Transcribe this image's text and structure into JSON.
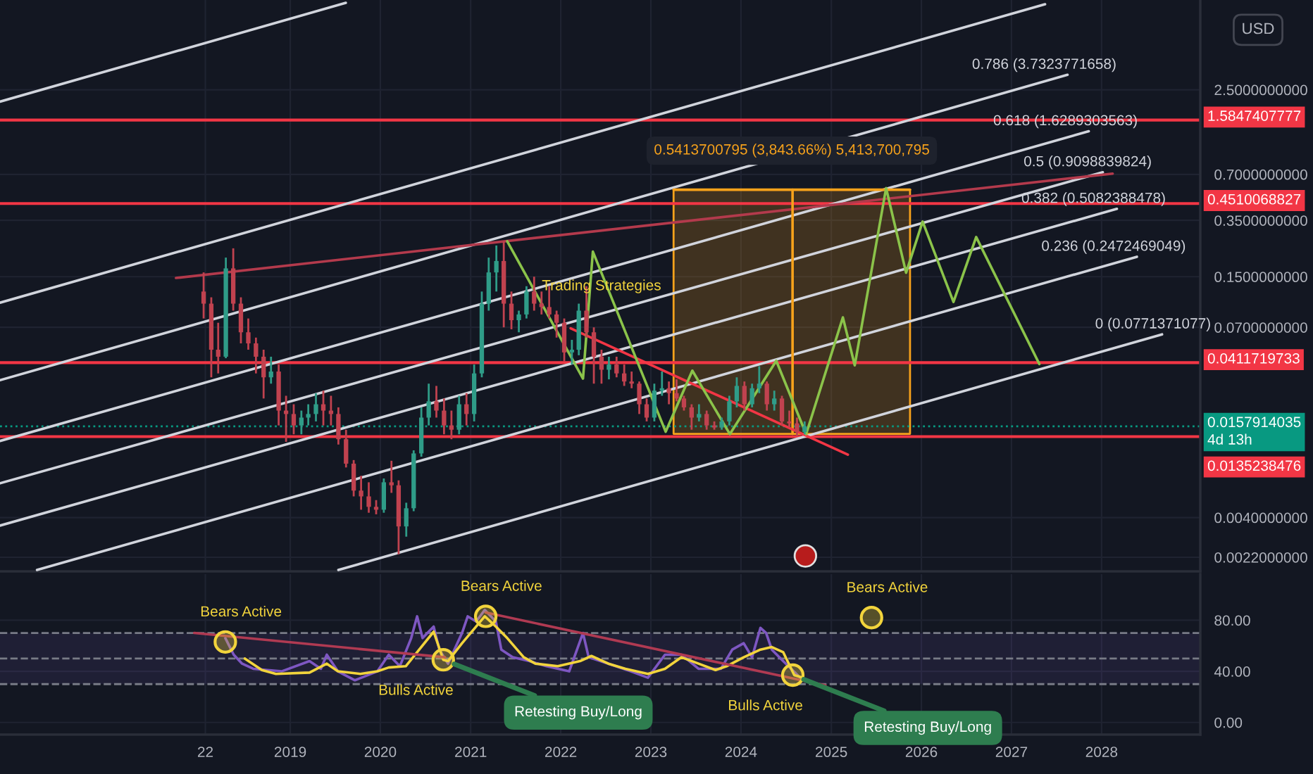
{
  "chart_data": [
    {
      "type": "candlestick",
      "ylabel": "USD",
      "log": true,
      "grid": true,
      "tick_labels": "y",
      "ylim": [
        0.00178,
        9.65
      ],
      "xlim": [
        "2015-10-13",
        "2029-02-04"
      ],
      "yticks": [
        {
          "value": 2.5,
          "label": "2.5000000000"
        },
        {
          "value": 0.7,
          "label": "0.7000000000"
        },
        {
          "value": 0.35,
          "label": "0.3500000000"
        },
        {
          "value": 0.15,
          "label": "0.1500000000"
        },
        {
          "value": 0.07,
          "label": "0.0700000000"
        },
        {
          "value": 0.004,
          "label": "0.0040000000"
        },
        {
          "value": 0.0022,
          "label": "0.0022000000"
        }
      ],
      "xticks": [
        {
          "value": "2018-01-22",
          "label": null
        },
        {
          "value": "2019",
          "label": null
        },
        {
          "value": "2020",
          "label": null
        },
        {
          "value": "2021",
          "label": null
        },
        {
          "value": "2022",
          "label": null
        },
        {
          "value": "2023",
          "label": null
        },
        {
          "value": "2024",
          "label": null
        },
        {
          "value": "2025",
          "label": null
        },
        {
          "value": "2026",
          "label": null
        },
        {
          "value": "2027",
          "label": null
        },
        {
          "value": "2028",
          "label": null
        }
      ],
      "x": [
        "2018-01-15",
        "2018-02-15",
        "2018-03-15",
        "2018-04-15",
        "2018-05-15",
        "2018-06-15",
        "2018-07-15",
        "2018-08-15",
        "2018-09-15",
        "2018-10-15",
        "2018-11-15",
        "2018-12-15",
        "2019-01-15",
        "2019-02-15",
        "2019-03-15",
        "2019-04-15",
        "2019-05-15",
        "2019-06-15",
        "2019-07-15",
        "2019-08-15",
        "2019-09-15",
        "2019-10-15",
        "2019-11-15",
        "2019-12-15",
        "2020-01-15",
        "2020-02-15",
        "2020-03-15",
        "2020-04-15",
        "2020-05-15",
        "2020-06-15",
        "2020-07-15",
        "2020-08-15",
        "2020-09-15",
        "2020-10-15",
        "2020-11-15",
        "2020-12-15",
        "2021-01-15",
        "2021-02-15",
        "2021-03-15",
        "2021-04-15",
        "2021-05-15",
        "2021-06-15",
        "2021-07-15",
        "2021-08-15",
        "2021-09-15",
        "2021-10-15",
        "2021-11-15",
        "2021-12-15",
        "2022-01-15",
        "2022-02-15",
        "2022-03-15",
        "2022-04-15",
        "2022-05-15",
        "2022-06-15",
        "2022-07-15",
        "2022-08-15",
        "2022-09-15",
        "2022-10-15",
        "2022-11-15",
        "2022-12-15",
        "2023-01-15",
        "2023-02-15",
        "2023-03-15",
        "2023-04-15",
        "2023-05-15",
        "2023-06-15",
        "2023-07-15",
        "2023-08-15",
        "2023-09-15",
        "2023-10-15",
        "2023-11-15",
        "2023-12-15",
        "2024-01-15",
        "2024-02-15",
        "2024-03-15",
        "2024-04-15",
        "2024-05-15",
        "2024-06-15",
        "2024-07-15",
        "2024-08-15",
        "2024-09-15"
      ],
      "ohlc": [
        [
          0.12,
          0.16,
          0.08,
          0.1
        ],
        [
          0.1,
          0.11,
          0.033,
          0.05
        ],
        [
          0.05,
          0.075,
          0.035,
          0.045
        ],
        [
          0.045,
          0.2,
          0.044,
          0.17
        ],
        [
          0.17,
          0.23,
          0.09,
          0.1
        ],
        [
          0.1,
          0.11,
          0.055,
          0.065
        ],
        [
          0.065,
          0.08,
          0.05,
          0.055
        ],
        [
          0.055,
          0.06,
          0.035,
          0.045
        ],
        [
          0.045,
          0.05,
          0.024,
          0.033
        ],
        [
          0.033,
          0.045,
          0.03,
          0.036
        ],
        [
          0.036,
          0.04,
          0.016,
          0.02
        ],
        [
          0.02,
          0.025,
          0.0125,
          0.019
        ],
        [
          0.019,
          0.022,
          0.014,
          0.016
        ],
        [
          0.016,
          0.02,
          0.014,
          0.018
        ],
        [
          0.018,
          0.022,
          0.016,
          0.019
        ],
        [
          0.019,
          0.026,
          0.017,
          0.022
        ],
        [
          0.022,
          0.027,
          0.016,
          0.02
        ],
        [
          0.02,
          0.025,
          0.016,
          0.019
        ],
        [
          0.019,
          0.021,
          0.012,
          0.013
        ],
        [
          0.013,
          0.015,
          0.0085,
          0.009
        ],
        [
          0.009,
          0.0095,
          0.0055,
          0.006
        ],
        [
          0.006,
          0.0075,
          0.0045,
          0.0055
        ],
        [
          0.0055,
          0.0068,
          0.0043,
          0.0047
        ],
        [
          0.0047,
          0.0052,
          0.0042,
          0.0045
        ],
        [
          0.0045,
          0.0072,
          0.0043,
          0.0068
        ],
        [
          0.0068,
          0.0094,
          0.0058,
          0.0065
        ],
        [
          0.0065,
          0.007,
          0.0023,
          0.0035
        ],
        [
          0.0035,
          0.005,
          0.003,
          0.0046
        ],
        [
          0.0046,
          0.011,
          0.0044,
          0.0105
        ],
        [
          0.0105,
          0.021,
          0.01,
          0.018
        ],
        [
          0.018,
          0.03,
          0.016,
          0.023
        ],
        [
          0.023,
          0.029,
          0.018,
          0.02
        ],
        [
          0.02,
          0.024,
          0.014,
          0.016
        ],
        [
          0.016,
          0.02,
          0.013,
          0.015
        ],
        [
          0.015,
          0.025,
          0.014,
          0.022
        ],
        [
          0.022,
          0.026,
          0.016,
          0.019
        ],
        [
          0.019,
          0.04,
          0.017,
          0.035
        ],
        [
          0.035,
          0.12,
          0.033,
          0.1
        ],
        [
          0.1,
          0.2,
          0.09,
          0.16
        ],
        [
          0.16,
          0.24,
          0.12,
          0.19
        ],
        [
          0.19,
          0.256,
          0.07,
          0.1
        ],
        [
          0.1,
          0.12,
          0.068,
          0.078
        ],
        [
          0.078,
          0.09,
          0.065,
          0.085
        ],
        [
          0.085,
          0.13,
          0.08,
          0.12
        ],
        [
          0.12,
          0.15,
          0.09,
          0.1
        ],
        [
          0.1,
          0.12,
          0.085,
          0.095
        ],
        [
          0.095,
          0.13,
          0.08,
          0.085
        ],
        [
          0.085,
          0.09,
          0.06,
          0.075
        ],
        [
          0.075,
          0.08,
          0.042,
          0.048
        ],
        [
          0.048,
          0.058,
          0.04,
          0.05
        ],
        [
          0.05,
          0.1,
          0.046,
          0.09
        ],
        [
          0.09,
          0.13,
          0.06,
          0.065
        ],
        [
          0.065,
          0.07,
          0.03,
          0.045
        ],
        [
          0.045,
          0.05,
          0.03,
          0.037
        ],
        [
          0.037,
          0.045,
          0.032,
          0.04
        ],
        [
          0.04,
          0.045,
          0.033,
          0.035
        ],
        [
          0.035,
          0.04,
          0.029,
          0.031
        ],
        [
          0.031,
          0.036,
          0.028,
          0.03
        ],
        [
          0.03,
          0.031,
          0.019,
          0.022
        ],
        [
          0.022,
          0.024,
          0.017,
          0.018
        ],
        [
          0.018,
          0.03,
          0.017,
          0.027
        ],
        [
          0.027,
          0.036,
          0.025,
          0.028
        ],
        [
          0.028,
          0.031,
          0.022,
          0.026
        ],
        [
          0.026,
          0.032,
          0.023,
          0.024
        ],
        [
          0.024,
          0.025,
          0.02,
          0.021
        ],
        [
          0.021,
          0.022,
          0.015,
          0.018
        ],
        [
          0.018,
          0.022,
          0.017,
          0.019
        ],
        [
          0.019,
          0.02,
          0.015,
          0.016
        ],
        [
          0.016,
          0.017,
          0.015,
          0.0155
        ],
        [
          0.0155,
          0.018,
          0.015,
          0.017
        ],
        [
          0.017,
          0.025,
          0.016,
          0.023
        ],
        [
          0.023,
          0.033,
          0.021,
          0.029
        ],
        [
          0.029,
          0.031,
          0.02,
          0.022
        ],
        [
          0.022,
          0.03,
          0.021,
          0.028
        ],
        [
          0.028,
          0.039,
          0.026,
          0.03
        ],
        [
          0.03,
          0.031,
          0.02,
          0.022
        ],
        [
          0.022,
          0.027,
          0.02,
          0.024
        ],
        [
          0.024,
          0.025,
          0.016,
          0.017
        ],
        [
          0.017,
          0.02,
          0.0155,
          0.0165
        ],
        [
          0.0165,
          0.018,
          0.0136,
          0.0145
        ],
        [
          0.0145,
          0.017,
          0.014,
          0.0158
        ]
      ],
      "colors": [
        "#c0424f",
        "#c0424f",
        "#c0424f",
        "#2f9c88",
        "#c0424f",
        "#c0424f",
        "#c0424f",
        "#c0424f",
        "#c0424f",
        "#2f9c88",
        "#c0424f",
        "#c0424f",
        "#c0424f",
        "#2f9c88",
        "#2f9c88",
        "#2f9c88",
        "#c0424f",
        "#c0424f",
        "#c0424f",
        "#c0424f",
        "#c0424f",
        "#c0424f",
        "#c0424f",
        "#c0424f",
        "#2f9c88",
        "#c0424f",
        "#c0424f",
        "#2f9c88",
        "#2f9c88",
        "#2f9c88",
        "#2f9c88",
        "#c0424f",
        "#c0424f",
        "#c0424f",
        "#2f9c88",
        "#c0424f",
        "#2f9c88",
        "#2f9c88",
        "#2f9c88",
        "#2f9c88",
        "#c0424f",
        "#c0424f",
        "#2f9c88",
        "#2f9c88",
        "#c0424f",
        "#c0424f",
        "#c0424f",
        "#c0424f",
        "#c0424f",
        "#2f9c88",
        "#2f9c88",
        "#c0424f",
        "#c0424f",
        "#c0424f",
        "#2f9c88",
        "#c0424f",
        "#c0424f",
        "#c0424f",
        "#c0424f",
        "#c0424f",
        "#2f9c88",
        "#2f9c88",
        "#c0424f",
        "#c0424f",
        "#c0424f",
        "#c0424f",
        "#2f9c88",
        "#c0424f",
        "#c0424f",
        "#2f9c88",
        "#2f9c88",
        "#2f9c88",
        "#c0424f",
        "#2f9c88",
        "#2f9c88",
        "#c0424f",
        "#2f9c88",
        "#c0424f",
        "#c0424f",
        "#c0424f",
        "#2f9c88"
      ],
      "series": [
        {
          "type": "line",
          "color": "#d1d4dc",
          "x": [
            "2015-10-13",
            "2019-08-14"
          ],
          "values": [
            2.09,
            9.25
          ]
        },
        {
          "type": "line",
          "color": "#d1d4dc",
          "x": [
            "2015-10-13",
            "2027-05-17"
          ],
          "values": [
            0.1015,
            9.05
          ]
        },
        {
          "type": "line",
          "color": "#d1d4dc",
          "name": "0.786 (3.7323771658)",
          "x": [
            "2015-10-13",
            "2027-08-16"
          ],
          "values": [
            0.0316,
            3.13
          ]
        },
        {
          "type": "line",
          "color": "#d1d4dc",
          "name": "0.618 (1.6289303563)",
          "x": [
            "2015-10-13",
            "2027-11-10"
          ],
          "values": [
            0.01267,
            1.339
          ]
        },
        {
          "type": "line",
          "color": "#d1d4dc",
          "name": "0.5 (0.9098839824)",
          "x": [
            "2015-10-13",
            "2028-01-06"
          ],
          "values": [
            0.0067,
            0.723
          ]
        },
        {
          "type": "line",
          "color": "#d1d4dc",
          "name": "0.382 (0.5082388478)",
          "x": [
            "2015-10-13",
            "2028-03-03"
          ],
          "values": [
            0.003545,
            0.4164
          ]
        },
        {
          "type": "line",
          "color": "#d1d4dc",
          "name": "0.236 (0.2472469049)",
          "x": [
            "2016-03-11",
            "2028-05-23"
          ],
          "values": [
            0.001817,
            0.2025
          ]
        },
        {
          "type": "line",
          "color": "#d1d4dc",
          "name": "0 (0.0771371077)",
          "x": [
            "2019-07-15",
            "2028-09-02"
          ],
          "values": [
            0.001817,
            0.063
          ]
        },
        {
          "type": "line",
          "color": "#b33a4c",
          "x": [
            "2017-09-25",
            "2028-02-15"
          ],
          "values": [
            0.1472,
            0.708
          ]
        },
        {
          "type": "line",
          "color": "#f7a21b",
          "name": "0.5413700795 (3,843.66%) 5,413,700,795",
          "x": [
            "2023-04-03",
            "2025-11-16"
          ],
          "values": [
            0.5555,
            0.5555
          ],
          "lower": [
            0.01409,
            0.01409
          ],
          "upper": [
            0.5555,
            0.5555
          ]
        },
        {
          "type": "line",
          "color": "#f7a21b",
          "x": [
            "2024-07-28",
            "2024-07-28"
          ],
          "values": [
            0.01409,
            0.5555
          ]
        },
        {
          "type": "line",
          "color": "#f23645",
          "x": [
            "2022-02-10",
            "2025-03-09"
          ],
          "values": [
            0.069,
            0.0103
          ]
        },
        {
          "type": "line",
          "color": "#8bc34a",
          "x": [
            "2021-05-29",
            "2022-04-01",
            "2022-05-11",
            "2023-03-02",
            "2023-06-18",
            "2023-11-17",
            "2024-05-23",
            "2024-09-21",
            "2025-02-17",
            "2025-04-06",
            "2025-08-11",
            "2025-10-31",
            "2026-01-06",
            "2026-05-11",
            "2026-08-11",
            "2027-04-24"
          ],
          "values": [
            0.2556,
            0.03238,
            0.2189,
            0.01455,
            0.03648,
            0.01404,
            0.04233,
            0.01404,
            0.0813,
            0.0395,
            0.5695,
            0.1593,
            0.344,
            0.1026,
            0.2725,
            0.0403
          ]
        }
      ],
      "ref_lines": [
        {
          "axis": "y",
          "value": 1.5847407777,
          "label": "1.5847407777",
          "color": "#f23645"
        },
        {
          "axis": "y",
          "value": 0.4510068827,
          "label": "0.4510068827",
          "color": "#f23645"
        },
        {
          "axis": "y",
          "value": 0.0411719733,
          "label": "0.0411719733",
          "color": "#f23645"
        },
        {
          "axis": "y",
          "value": 0.0157914035,
          "label": "0.0157914035\n4d 13h",
          "color": "#089981",
          "line_style": "dotted"
        },
        {
          "axis": "y",
          "value": 0.0135238476,
          "label": "0.0135238476",
          "color": "#f23645"
        }
      ],
      "annotations": [
        {
          "text": "Trading Strategies",
          "x": "2022-06-15",
          "y": 0.1296
        }
      ]
    },
    {
      "type": "line",
      "grid": true,
      "ylim": [
        -9.5,
        116
      ],
      "xlim": [
        "2015-10-13",
        "2029-02-04"
      ],
      "yticks": [
        {
          "value": 0,
          "label": "0.00"
        },
        {
          "value": 40,
          "label": "40.00"
        },
        {
          "value": 80,
          "label": "80.00"
        }
      ],
      "xticks": [
        {
          "value": "2018-01-22",
          "label": "22"
        },
        "2019",
        "2020",
        "2021",
        "2022",
        "2023",
        "2024",
        "2025",
        "2026",
        "2027",
        "2028"
      ],
      "series": [
        {
          "color": "#7e57c2",
          "x": [
            "2018-04-13",
            "2018-05-17",
            "2018-06-20",
            "2018-08-04",
            "2018-11-27",
            "2019-03-20",
            "2019-05-05",
            "2019-05-29",
            "2019-07-13",
            "2019-09-20",
            "2019-12-20",
            "2020-02-04",
            "2020-03-20",
            "2020-05-05",
            "2020-05-29",
            "2020-06-20",
            "2020-08-04",
            "2020-08-27",
            "2020-10-01",
            "2020-11-27",
            "2020-12-20",
            "2021-01-23",
            "2021-02-27",
            "2021-04-13",
            "2021-05-05",
            "2021-06-20",
            "2021-08-27",
            "2021-11-04",
            "2022-02-04",
            "2022-04-01",
            "2022-04-24",
            "2022-07-13",
            "2022-10-12",
            "2022-12-20",
            "2023-02-27",
            "2023-05-05",
            "2023-07-13",
            "2023-10-12",
            "2023-11-27",
            "2024-01-12",
            "2024-02-15",
            "2024-03-20",
            "2024-04-12",
            "2024-05-05",
            "2024-06-20",
            "2024-09-08"
          ],
          "values": [
            66,
            53,
            46,
            42,
            40,
            48,
            42,
            53,
            40,
            33,
            40,
            53,
            44,
            66,
            83,
            66,
            75,
            57,
            46,
            70,
            83,
            79,
            88,
            79,
            57,
            51,
            48,
            44,
            40,
            70,
            51,
            46,
            40,
            35,
            53,
            53,
            42,
            42,
            57,
            62,
            51,
            74,
            70,
            57,
            48,
            33
          ]
        },
        {
          "color": "#f2d43c",
          "x": [
            "2018-07-01",
            "2018-09-08",
            "2018-11-04",
            "2019-03-20",
            "2019-05-29",
            "2019-07-13",
            "2019-10-12",
            "2019-12-20",
            "2020-02-04",
            "2020-04-13",
            "2020-05-29",
            "2020-08-04",
            "2020-09-12",
            "2020-10-01",
            "2020-11-27",
            "2021-02-27",
            "2021-04-13",
            "2021-05-29",
            "2021-08-04",
            "2021-09-20",
            "2021-12-20",
            "2022-03-20",
            "2022-05-05",
            "2022-07-13",
            "2022-09-20",
            "2022-12-20",
            "2023-02-27",
            "2023-05-05",
            "2023-07-13",
            "2023-09-20",
            "2023-11-04",
            "2024-01-12",
            "2024-03-20",
            "2024-05-05",
            "2024-06-20",
            "2024-08-04",
            "2024-09-08"
          ],
          "values": [
            50,
            41,
            38,
            39,
            46,
            40,
            38,
            40,
            43,
            44,
            55,
            71,
            49,
            48,
            62,
            83,
            75,
            66,
            51,
            46,
            44,
            48,
            52,
            46,
            42,
            38,
            42,
            51,
            46,
            41,
            44,
            51,
            57,
            59,
            55,
            37,
            35
          ]
        },
        {
          "type": "line",
          "color": "#b03a52",
          "x": [
            "2017-12-08",
            "2020-09-19"
          ],
          "values": [
            70,
            51
          ]
        },
        {
          "type": "line",
          "color": "#b03a52",
          "x": [
            "2021-03-03",
            "2024-12-08"
          ],
          "values": [
            86,
            29
          ]
        },
        {
          "type": "scatter",
          "color": "#f2d43c",
          "marker": "circle",
          "name": "Bears Active",
          "x": [
            "2018-04-13"
          ],
          "values": [
            63
          ]
        },
        {
          "type": "scatter",
          "color": "#f2d43c",
          "marker": "circle",
          "name": "Bulls Active",
          "x": [
            "2020-09-12"
          ],
          "values": [
            49
          ]
        },
        {
          "type": "scatter",
          "color": "#f2d43c",
          "marker": "circle",
          "name": "Bears Active",
          "x": [
            "2021-03-03"
          ],
          "values": [
            83
          ]
        },
        {
          "type": "scatter",
          "color": "#f2d43c",
          "marker": "circle",
          "name": "Bulls Active",
          "x": [
            "2024-07-29"
          ],
          "values": [
            37
          ]
        },
        {
          "type": "scatter",
          "color": "#f2d43c",
          "marker": "circle",
          "name": "Bears Active",
          "x": [
            "2025-06-13"
          ],
          "values": [
            82
          ]
        }
      ],
      "ref_lines": [
        {
          "axis": "y",
          "value": 70,
          "color": "#787b86",
          "line_style": "dashed"
        },
        {
          "axis": "y",
          "value": 50,
          "color": "#787b86",
          "line_style": "dashed"
        },
        {
          "axis": "y",
          "value": 30,
          "color": "#787b86",
          "line_style": "dashed"
        }
      ],
      "bands": [
        {
          "axis": "y",
          "from": 30,
          "to": 70,
          "color": "#7e57c2"
        }
      ],
      "annotations": [
        {
          "text": "Retesting Buy/Long",
          "x": "2020-09-12",
          "y": 49
        },
        {
          "text": "Retesting Buy/Long",
          "x": "2024-07-29",
          "y": 37
        }
      ]
    }
  ]
}
